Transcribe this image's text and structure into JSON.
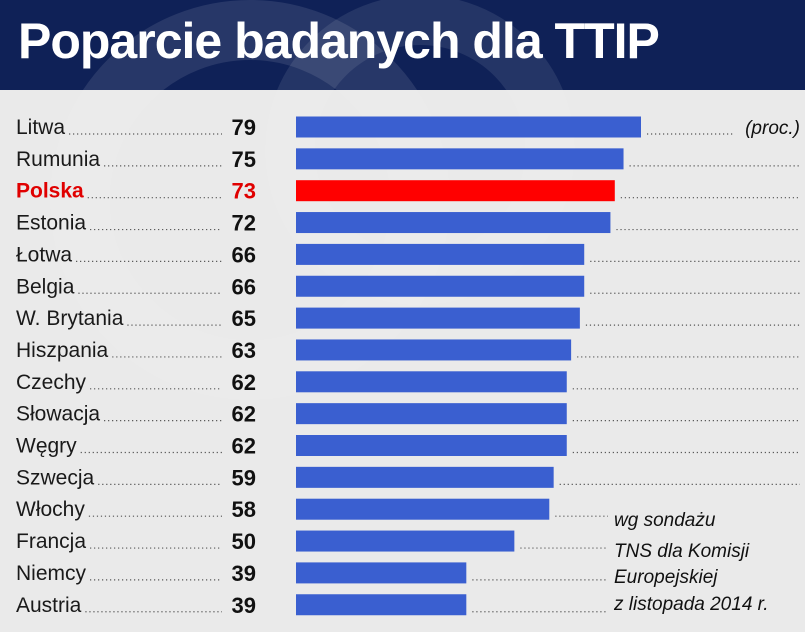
{
  "title": "Poparcie badanych dla TTIP",
  "unit_label": "(proc.)",
  "source_lines": [
    "wg sondażu",
    "TNS dla Komisji",
    "Europejskiej",
    "z listopada 2014 r."
  ],
  "colors": {
    "header": "#0f2157",
    "bar": "#3a5fd0",
    "highlight": "#ff0000",
    "background": "#eaeaea"
  },
  "chart_data": {
    "type": "bar",
    "orientation": "horizontal",
    "title": "Poparcie badanych dla TTIP",
    "unit": "(proc.)",
    "highlight": "Polska",
    "categories": [
      "Litwa",
      "Rumunia",
      "Polska",
      "Estonia",
      "Łotwa",
      "Belgia",
      "W. Brytania",
      "Hiszpania",
      "Czechy",
      "Słowacja",
      "Węgry",
      "Szwecja",
      "Włochy",
      "Francja",
      "Niemcy",
      "Austria"
    ],
    "values": [
      79,
      75,
      73,
      72,
      66,
      66,
      65,
      63,
      62,
      62,
      62,
      59,
      58,
      50,
      39,
      39
    ],
    "xlim": [
      0,
      79
    ]
  }
}
